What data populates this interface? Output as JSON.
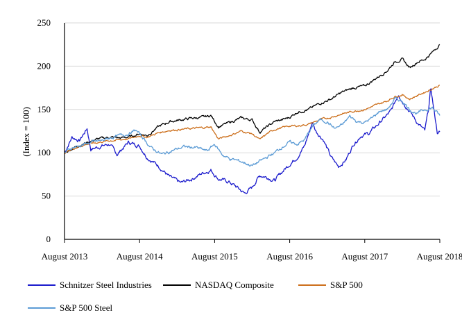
{
  "chart_data": {
    "type": "line",
    "title": "",
    "xlabel": "",
    "ylabel": "(Index = 100)",
    "ylim": [
      0,
      250
    ],
    "yticks": [
      0,
      50,
      100,
      150,
      200,
      250
    ],
    "xlim": [
      "August 2013",
      "August 2018"
    ],
    "xticks": [
      "August 2013",
      "August 2014",
      "August 2015",
      "August 2016",
      "August 2017",
      "August 2018"
    ],
    "grid": "horizontal",
    "legend_position": "bottom",
    "series": [
      {
        "name": "Schnitzer Steel Industries",
        "color": "#1a1acc",
        "points": [
          [
            0,
            100
          ],
          [
            0.1,
            118
          ],
          [
            0.2,
            114
          ],
          [
            0.3,
            128
          ],
          [
            0.35,
            104
          ],
          [
            0.5,
            108
          ],
          [
            0.6,
            110
          ],
          [
            0.7,
            98
          ],
          [
            0.85,
            112
          ],
          [
            1.0,
            108
          ],
          [
            1.1,
            95
          ],
          [
            1.25,
            85
          ],
          [
            1.4,
            72
          ],
          [
            1.55,
            65
          ],
          [
            1.7,
            70
          ],
          [
            1.85,
            77
          ],
          [
            1.95,
            80
          ],
          [
            2.05,
            70
          ],
          [
            2.2,
            66
          ],
          [
            2.3,
            60
          ],
          [
            2.4,
            53
          ],
          [
            2.5,
            60
          ],
          [
            2.6,
            74
          ],
          [
            2.7,
            72
          ],
          [
            2.8,
            68
          ],
          [
            2.9,
            78
          ],
          [
            3.0,
            87
          ],
          [
            3.1,
            95
          ],
          [
            3.2,
            108
          ],
          [
            3.3,
            135
          ],
          [
            3.35,
            125
          ],
          [
            3.45,
            115
          ],
          [
            3.55,
            95
          ],
          [
            3.65,
            84
          ],
          [
            3.75,
            92
          ],
          [
            3.85,
            110
          ],
          [
            3.95,
            120
          ],
          [
            4.05,
            122
          ],
          [
            4.2,
            135
          ],
          [
            4.35,
            148
          ],
          [
            4.45,
            168
          ],
          [
            4.5,
            160
          ],
          [
            4.6,
            148
          ],
          [
            4.7,
            135
          ],
          [
            4.8,
            125
          ],
          [
            4.85,
            150
          ],
          [
            4.88,
            175
          ],
          [
            4.92,
            150
          ],
          [
            4.97,
            122
          ],
          [
            5.0,
            124
          ]
        ]
      },
      {
        "name": "NASDAQ Composite",
        "color": "#000000",
        "points": [
          [
            0,
            100
          ],
          [
            0.15,
            107
          ],
          [
            0.3,
            112
          ],
          [
            0.45,
            116
          ],
          [
            0.6,
            118
          ],
          [
            0.75,
            117
          ],
          [
            0.9,
            119
          ],
          [
            1.0,
            122
          ],
          [
            1.1,
            120
          ],
          [
            1.25,
            130
          ],
          [
            1.4,
            136
          ],
          [
            1.55,
            138
          ],
          [
            1.7,
            140
          ],
          [
            1.85,
            141
          ],
          [
            1.95,
            143
          ],
          [
            2.05,
            130
          ],
          [
            2.2,
            135
          ],
          [
            2.35,
            140
          ],
          [
            2.5,
            138
          ],
          [
            2.6,
            124
          ],
          [
            2.7,
            130
          ],
          [
            2.8,
            136
          ],
          [
            2.9,
            138
          ],
          [
            3.0,
            141
          ],
          [
            3.1,
            147
          ],
          [
            3.25,
            150
          ],
          [
            3.4,
            157
          ],
          [
            3.55,
            162
          ],
          [
            3.7,
            170
          ],
          [
            3.85,
            175
          ],
          [
            4.0,
            177
          ],
          [
            4.15,
            186
          ],
          [
            4.3,
            195
          ],
          [
            4.4,
            205
          ],
          [
            4.5,
            208
          ],
          [
            4.6,
            198
          ],
          [
            4.7,
            205
          ],
          [
            4.8,
            208
          ],
          [
            4.9,
            216
          ],
          [
            5.0,
            225
          ]
        ]
      },
      {
        "name": "S&P 500",
        "color": "#cc6e1a",
        "points": [
          [
            0,
            100
          ],
          [
            0.15,
            106
          ],
          [
            0.3,
            110
          ],
          [
            0.45,
            112
          ],
          [
            0.6,
            114
          ],
          [
            0.75,
            115
          ],
          [
            0.9,
            117
          ],
          [
            1.0,
            120
          ],
          [
            1.1,
            118
          ],
          [
            1.25,
            123
          ],
          [
            1.4,
            126
          ],
          [
            1.55,
            127
          ],
          [
            1.7,
            128
          ],
          [
            1.85,
            129
          ],
          [
            1.95,
            130
          ],
          [
            2.05,
            116
          ],
          [
            2.2,
            120
          ],
          [
            2.35,
            125
          ],
          [
            2.5,
            122
          ],
          [
            2.6,
            115
          ],
          [
            2.7,
            122
          ],
          [
            2.8,
            127
          ],
          [
            2.9,
            129
          ],
          [
            3.0,
            131
          ],
          [
            3.1,
            131
          ],
          [
            3.25,
            133
          ],
          [
            3.4,
            138
          ],
          [
            3.55,
            141
          ],
          [
            3.7,
            145
          ],
          [
            3.85,
            148
          ],
          [
            4.0,
            150
          ],
          [
            4.15,
            155
          ],
          [
            4.3,
            160
          ],
          [
            4.4,
            165
          ],
          [
            4.5,
            167
          ],
          [
            4.6,
            162
          ],
          [
            4.7,
            166
          ],
          [
            4.8,
            170
          ],
          [
            4.9,
            174
          ],
          [
            5.0,
            178
          ]
        ]
      },
      {
        "name": "S&P 500 Steel",
        "color": "#5b9bd5",
        "points": [
          [
            0,
            100
          ],
          [
            0.1,
            106
          ],
          [
            0.2,
            108
          ],
          [
            0.35,
            112
          ],
          [
            0.5,
            114
          ],
          [
            0.6,
            117
          ],
          [
            0.75,
            120
          ],
          [
            0.85,
            122
          ],
          [
            0.95,
            126
          ],
          [
            1.05,
            117
          ],
          [
            1.15,
            106
          ],
          [
            1.3,
            98
          ],
          [
            1.45,
            103
          ],
          [
            1.6,
            107
          ],
          [
            1.75,
            106
          ],
          [
            1.9,
            102
          ],
          [
            2.0,
            110
          ],
          [
            2.1,
            98
          ],
          [
            2.2,
            93
          ],
          [
            2.35,
            90
          ],
          [
            2.5,
            85
          ],
          [
            2.6,
            90
          ],
          [
            2.7,
            95
          ],
          [
            2.8,
            100
          ],
          [
            2.9,
            107
          ],
          [
            3.0,
            112
          ],
          [
            3.1,
            110
          ],
          [
            3.2,
            115
          ],
          [
            3.3,
            130
          ],
          [
            3.4,
            138
          ],
          [
            3.5,
            136
          ],
          [
            3.6,
            128
          ],
          [
            3.7,
            132
          ],
          [
            3.8,
            142
          ],
          [
            3.9,
            136
          ],
          [
            4.0,
            135
          ],
          [
            4.1,
            140
          ],
          [
            4.2,
            148
          ],
          [
            4.3,
            150
          ],
          [
            4.4,
            162
          ],
          [
            4.5,
            160
          ],
          [
            4.6,
            150
          ],
          [
            4.7,
            145
          ],
          [
            4.8,
            150
          ],
          [
            4.9,
            152
          ],
          [
            5.0,
            143
          ]
        ]
      }
    ]
  }
}
